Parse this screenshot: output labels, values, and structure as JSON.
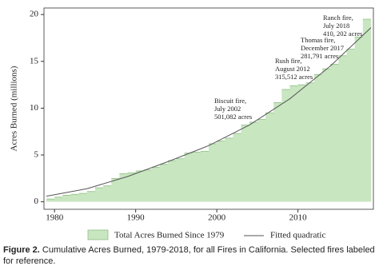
{
  "chart_data": {
    "type": "step-area-line",
    "y_label": "Acres Burned (millions)",
    "xlim": [
      1978.7,
      2019.3
    ],
    "xticks": [
      1980,
      1990,
      2000,
      2010
    ],
    "ylim": [
      -0.8,
      20.7
    ],
    "yticks": [
      0,
      5,
      10,
      15,
      20
    ],
    "series": [
      {
        "name": "Total Acres Burned Since 1979",
        "color": "#c8e6c0",
        "x": [
          1979,
          1980,
          1981,
          1982,
          1983,
          1984,
          1985,
          1986,
          1987,
          1988,
          1989,
          1990,
          1991,
          1992,
          1993,
          1994,
          1995,
          1996,
          1997,
          1998,
          1999,
          2000,
          2001,
          2002,
          2003,
          2004,
          2005,
          2006,
          2007,
          2008,
          2009,
          2010,
          2011,
          2012,
          2013,
          2014,
          2015,
          2016,
          2017,
          2018
        ],
        "values": [
          0.3,
          0.5,
          0.7,
          0.8,
          0.9,
          1.1,
          1.5,
          1.7,
          2.5,
          3.0,
          3.1,
          3.3,
          3.4,
          3.7,
          4.0,
          4.4,
          4.6,
          5.2,
          5.3,
          5.4,
          6.2,
          6.5,
          6.8,
          7.3,
          8.2,
          8.5,
          8.8,
          9.5,
          10.6,
          12.0,
          12.4,
          12.5,
          12.7,
          13.6,
          14.2,
          14.7,
          15.6,
          16.3,
          17.6,
          19.5
        ]
      },
      {
        "name": "Fitted quadratic",
        "color": "#555555",
        "x": [
          1979,
          1984,
          1989,
          1994,
          1999,
          2004,
          2009,
          2014,
          2019
        ],
        "values": [
          0.6,
          1.4,
          2.7,
          4.3,
          6.0,
          8.2,
          11.0,
          14.5,
          18.6
        ]
      }
    ],
    "annotations": [
      {
        "lines": [
          "Biscuit fire,",
          "July 2002",
          "501,082 acres"
        ]
      },
      {
        "lines": [
          "Rush fire,",
          "August 2012",
          "315,512 acres"
        ]
      },
      {
        "lines": [
          "Thomas fire,",
          "December 2017",
          "281,791 acres"
        ]
      },
      {
        "lines": [
          "Ranch fire,",
          "July 2018",
          "410, 202 acres"
        ]
      }
    ],
    "caption_label": "Figure 2.",
    "caption": "Cumulative Acres Burned, 1979-2018, for all Fires in California. Selected fires labeled for reference."
  }
}
